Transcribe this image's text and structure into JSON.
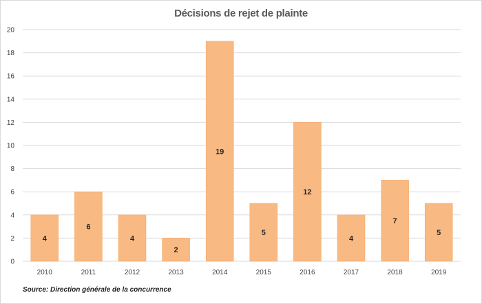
{
  "colors": {
    "bar": "#f8b982",
    "bar_stroke": "#f4a565",
    "grid": "#d9d9d9",
    "axis_text": "#404040",
    "label_text": "#262626"
  },
  "source": "Source:  Direction  générale  de la concurrence",
  "chart_data": {
    "type": "bar",
    "title": "Décisions de rejet de plainte",
    "xlabel": "",
    "ylabel": "",
    "categories": [
      "2010",
      "2011",
      "2012",
      "2013",
      "2014",
      "2015",
      "2016",
      "2017",
      "2018",
      "2019"
    ],
    "values": [
      4,
      6,
      4,
      2,
      19,
      5,
      12,
      4,
      7,
      5
    ],
    "ylim": [
      0,
      20
    ],
    "yticks": [
      0,
      2,
      4,
      6,
      8,
      10,
      12,
      14,
      16,
      18,
      20
    ],
    "grid": true,
    "legend": "none",
    "data_labels": true
  }
}
